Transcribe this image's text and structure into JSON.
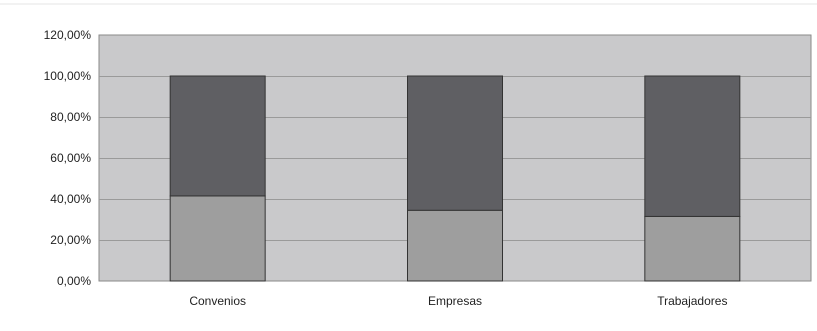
{
  "chart_data": {
    "type": "bar",
    "stacked": true,
    "categories": [
      "Convenios",
      "Empresas",
      "Trabajadores"
    ],
    "series": [
      {
        "values": [
          41.5,
          34.5,
          31.5
        ],
        "color": "#9e9e9e"
      },
      {
        "values": [
          58.5,
          65.5,
          68.5
        ],
        "color": "#5f5f63"
      }
    ],
    "ylim": [
      0,
      120
    ],
    "yticks": [
      0,
      20,
      40,
      60,
      80,
      100,
      120
    ],
    "ytick_labels": [
      "0,00%",
      "20,00%",
      "40,00%",
      "60,00%",
      "80,00%",
      "100,00%",
      "120,00%"
    ],
    "grid": true,
    "plot_background": "#c9c9cb",
    "gridline_color": "#9a9a9a",
    "title": "",
    "xlabel": "",
    "ylabel": ""
  }
}
